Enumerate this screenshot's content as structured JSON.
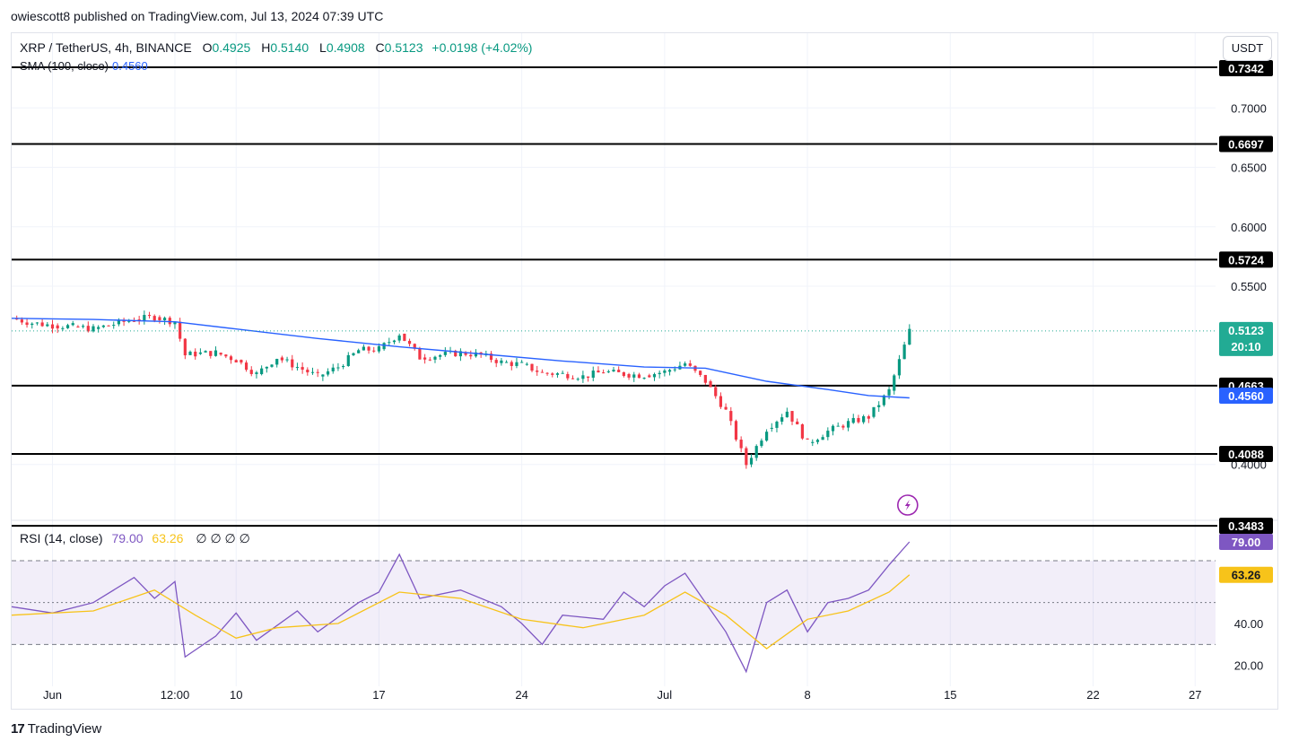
{
  "header": {
    "publisher": "owiescott8 published on TradingView.com, Jul 13, 2024 07:39 UTC"
  },
  "symbol": {
    "name": "XRP / TetherUS, 4h, BINANCE",
    "open_label": "O",
    "open": "0.4925",
    "high_label": "H",
    "high": "0.5140",
    "low_label": "L",
    "low": "0.4908",
    "close_label": "C",
    "close": "0.5123",
    "change": "+0.0198 (+4.02%)"
  },
  "sma": {
    "label": "SMA (100, close)",
    "value": "0.4560"
  },
  "rsi_legend": {
    "label": "RSI (14, close)",
    "value": "79.00",
    "ma_value": "63.26",
    "extras": "∅ ∅ ∅ ∅"
  },
  "currency_button": "USDT",
  "footer": {
    "logo": "17",
    "brand": "TradingView"
  },
  "colors": {
    "up": "#089981",
    "down": "#f23645",
    "sma": "#2962ff",
    "rsi": "#7e57c2",
    "rsi_ma": "#f7c31a",
    "level": "#000000",
    "price_tag": "#22ab94"
  },
  "chart_data": [
    {
      "type": "candlestick",
      "title": "XRP / TetherUS, 4h, BINANCE",
      "ylim": [
        0.359,
        0.7342
      ],
      "y_ticks": [
        "0.7000",
        "0.6500",
        "0.6000",
        "0.5500",
        "0.4000"
      ],
      "x_ticks": [
        "Jun",
        "12:00",
        "10",
        "17",
        "24",
        "Jul",
        "8",
        "15",
        "22",
        "27"
      ],
      "x_range_days": [
        "2024-05-30",
        "2024-07-28"
      ],
      "horizontal_levels": [
        "0.7342",
        "0.6697",
        "0.5724",
        "0.4663",
        "0.4088",
        "0.3483"
      ],
      "current_price": {
        "value": "0.5123",
        "countdown": "20:10"
      },
      "sma_tag": "0.4560",
      "price_path": [
        [
          "2024-05-30",
          0.523
        ],
        [
          "2024-05-31",
          0.519
        ],
        [
          "2024-06-01",
          0.517
        ],
        [
          "2024-06-02",
          0.516
        ],
        [
          "2024-06-03",
          0.514
        ],
        [
          "2024-06-04",
          0.518
        ],
        [
          "2024-06-05",
          0.522
        ],
        [
          "2024-06-06",
          0.524
        ],
        [
          "2024-06-07",
          0.52
        ],
        [
          "2024-06-07T12",
          0.492
        ],
        [
          "2024-06-08",
          0.493
        ],
        [
          "2024-06-09",
          0.494
        ],
        [
          "2024-06-10",
          0.488
        ],
        [
          "2024-06-11",
          0.476
        ],
        [
          "2024-06-12",
          0.49
        ],
        [
          "2024-06-13",
          0.482
        ],
        [
          "2024-06-14",
          0.474
        ],
        [
          "2024-06-15",
          0.482
        ],
        [
          "2024-06-16",
          0.496
        ],
        [
          "2024-06-17",
          0.497
        ],
        [
          "2024-06-18",
          0.51
        ],
        [
          "2024-06-19",
          0.49
        ],
        [
          "2024-06-20",
          0.492
        ],
        [
          "2024-06-21",
          0.494
        ],
        [
          "2024-06-22",
          0.492
        ],
        [
          "2024-06-23",
          0.486
        ],
        [
          "2024-06-24",
          0.484
        ],
        [
          "2024-06-25",
          0.477
        ],
        [
          "2024-06-26",
          0.476
        ],
        [
          "2024-06-27",
          0.474
        ],
        [
          "2024-06-28",
          0.478
        ],
        [
          "2024-06-29",
          0.476
        ],
        [
          "2024-06-30",
          0.475
        ],
        [
          "2024-07-01",
          0.478
        ],
        [
          "2024-07-02",
          0.485
        ],
        [
          "2024-07-03",
          0.47
        ],
        [
          "2024-07-04",
          0.445
        ],
        [
          "2024-07-05",
          0.4
        ],
        [
          "2024-07-06",
          0.43
        ],
        [
          "2024-07-07",
          0.445
        ],
        [
          "2024-07-08",
          0.418
        ],
        [
          "2024-07-09",
          0.428
        ],
        [
          "2024-07-10",
          0.435
        ],
        [
          "2024-07-11",
          0.44
        ],
        [
          "2024-07-12",
          0.462
        ],
        [
          "2024-07-13",
          0.5123
        ]
      ],
      "sma_path": [
        [
          "2024-05-30",
          0.523
        ],
        [
          "2024-06-03",
          0.522
        ],
        [
          "2024-06-07",
          0.52
        ],
        [
          "2024-06-10",
          0.514
        ],
        [
          "2024-06-14",
          0.506
        ],
        [
          "2024-06-18",
          0.499
        ],
        [
          "2024-06-22",
          0.493
        ],
        [
          "2024-06-26",
          0.487
        ],
        [
          "2024-06-30",
          0.482
        ],
        [
          "2024-07-03",
          0.481
        ],
        [
          "2024-07-06",
          0.47
        ],
        [
          "2024-07-09",
          0.463
        ],
        [
          "2024-07-11",
          0.458
        ],
        [
          "2024-07-13",
          0.456
        ]
      ]
    },
    {
      "type": "line",
      "title": "RSI (14, close)",
      "ylim": [
        10,
        85
      ],
      "y_ticks": [
        "40.00",
        "20.00"
      ],
      "bands": [
        30,
        50,
        70
      ],
      "series": [
        {
          "name": "RSI",
          "values": [
            [
              "2024-05-30",
              48
            ],
            [
              "2024-06-01",
              45
            ],
            [
              "2024-06-03",
              50
            ],
            [
              "2024-06-05",
              62
            ],
            [
              "2024-06-06",
              52
            ],
            [
              "2024-06-07",
              60
            ],
            [
              "2024-06-07T12",
              24
            ],
            [
              "2024-06-09",
              34
            ],
            [
              "2024-06-10",
              45
            ],
            [
              "2024-06-11",
              32
            ],
            [
              "2024-06-13",
              46
            ],
            [
              "2024-06-14",
              36
            ],
            [
              "2024-06-16",
              50
            ],
            [
              "2024-06-17",
              55
            ],
            [
              "2024-06-18",
              73
            ],
            [
              "2024-06-19",
              52
            ],
            [
              "2024-06-21",
              56
            ],
            [
              "2024-06-23",
              48
            ],
            [
              "2024-06-24",
              40
            ],
            [
              "2024-06-25",
              30
            ],
            [
              "2024-06-26",
              44
            ],
            [
              "2024-06-28",
              42
            ],
            [
              "2024-06-29",
              55
            ],
            [
              "2024-06-30",
              48
            ],
            [
              "2024-07-01",
              58
            ],
            [
              "2024-07-02",
              64
            ],
            [
              "2024-07-03",
              50
            ],
            [
              "2024-07-04",
              36
            ],
            [
              "2024-07-05",
              17
            ],
            [
              "2024-07-06",
              50
            ],
            [
              "2024-07-07",
              56
            ],
            [
              "2024-07-08",
              36
            ],
            [
              "2024-07-09",
              50
            ],
            [
              "2024-07-10",
              52
            ],
            [
              "2024-07-11",
              56
            ],
            [
              "2024-07-12",
              68
            ],
            [
              "2024-07-13",
              79.0
            ]
          ]
        },
        {
          "name": "RSI-based MA",
          "values": [
            [
              "2024-05-30",
              44
            ],
            [
              "2024-06-03",
              46
            ],
            [
              "2024-06-06",
              56
            ],
            [
              "2024-06-08",
              44
            ],
            [
              "2024-06-10",
              33
            ],
            [
              "2024-06-12",
              38
            ],
            [
              "2024-06-15",
              40
            ],
            [
              "2024-06-18",
              55
            ],
            [
              "2024-06-21",
              52
            ],
            [
              "2024-06-24",
              42
            ],
            [
              "2024-06-27",
              38
            ],
            [
              "2024-06-30",
              44
            ],
            [
              "2024-07-02",
              55
            ],
            [
              "2024-07-04",
              44
            ],
            [
              "2024-07-06",
              28
            ],
            [
              "2024-07-08",
              42
            ],
            [
              "2024-07-10",
              46
            ],
            [
              "2024-07-12",
              55
            ],
            [
              "2024-07-13",
              63.26
            ]
          ]
        }
      ]
    }
  ]
}
